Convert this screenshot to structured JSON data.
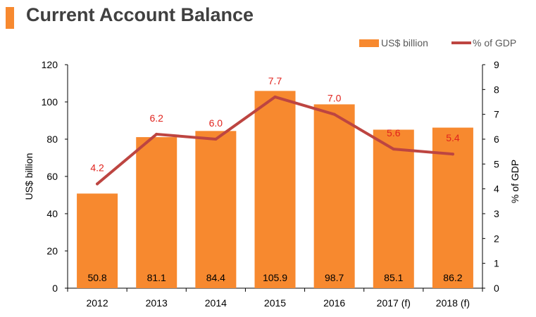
{
  "title": "Current Account Balance",
  "colors": {
    "accent": "#F7892F",
    "bar": "#F7892F",
    "line": "#BD4541",
    "label_line": "#E0231D"
  },
  "chart_data": {
    "type": "bar",
    "categories": [
      "2012",
      "2013",
      "2014",
      "2015",
      "2016",
      "2017 (f)",
      "2018 (f)"
    ],
    "series": [
      {
        "name": "US$ billion",
        "type": "bar",
        "axis": "left",
        "values": [
          50.8,
          81.1,
          84.4,
          105.9,
          98.7,
          85.1,
          86.2
        ],
        "labels": [
          "50.8",
          "81.1",
          "84.4",
          "105.9",
          "98.7",
          "85.1",
          "86.2"
        ]
      },
      {
        "name": "% of GDP",
        "type": "line",
        "axis": "right",
        "values": [
          4.2,
          6.2,
          6.0,
          7.7,
          7.0,
          5.6,
          5.4
        ],
        "labels": [
          "4.2",
          "6.2",
          "6.0",
          "7.7",
          "7.0",
          "5.6",
          "5.4"
        ]
      }
    ],
    "ylabel": "US$ billion",
    "y2label": "% of GDP",
    "ylim": [
      0,
      120
    ],
    "y2lim": [
      0,
      9
    ],
    "yticks": [
      "0",
      "20",
      "40",
      "60",
      "80",
      "100",
      "120"
    ],
    "y2ticks": [
      "0",
      "1",
      "2",
      "3",
      "4",
      "5",
      "6",
      "7",
      "8",
      "9"
    ],
    "legend_position": "top-right",
    "grid": false
  }
}
